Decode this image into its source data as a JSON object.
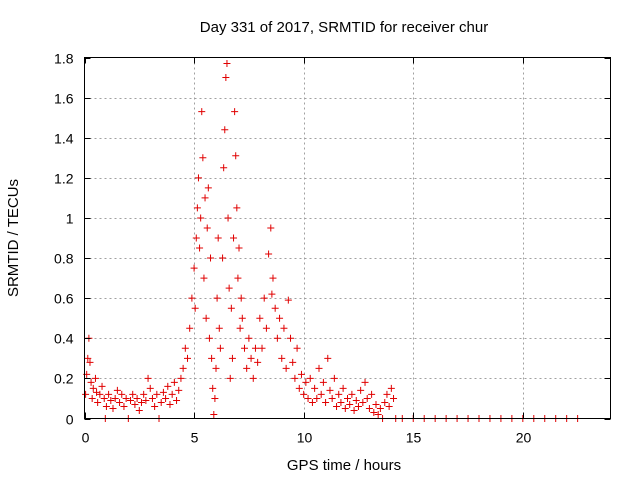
{
  "colors": {
    "marker": "#e00000",
    "axis": "#000000",
    "grid": "#a0a0a0"
  },
  "chart_data": {
    "type": "scatter",
    "title": "Day 331 of 2017, SRMTID for receiver chur",
    "xlabel": "GPS time / hours",
    "ylabel": "SRMTID / TECUs",
    "xlim": [
      0,
      24
    ],
    "ylim": [
      0,
      1.8
    ],
    "xticks": [
      0,
      5,
      10,
      15,
      20
    ],
    "xtick_labels": [
      "0",
      "5",
      "10",
      "15",
      "20"
    ],
    "yticks": [
      0,
      0.2,
      0.4,
      0.6,
      0.8,
      1.0,
      1.2,
      1.4,
      1.6,
      1.8
    ],
    "ytick_labels": [
      "0",
      "0.2",
      "0.4",
      "0.6",
      "0.8",
      "1",
      "1.2",
      "1.4",
      "1.6",
      "1.8"
    ],
    "grid": true,
    "marker": "plus",
    "series": [
      {
        "name": "SRMTID",
        "points": [
          [
            0.05,
            0.12
          ],
          [
            0.1,
            0.22
          ],
          [
            0.15,
            0.3
          ],
          [
            0.2,
            0.4
          ],
          [
            0.25,
            0.28
          ],
          [
            0.3,
            0.18
          ],
          [
            0.35,
            0.1
          ],
          [
            0.4,
            0.15
          ],
          [
            0.5,
            0.2
          ],
          [
            0.55,
            0.13
          ],
          [
            0.6,
            0.08
          ],
          [
            0.7,
            0.12
          ],
          [
            0.8,
            0.16
          ],
          [
            0.9,
            0.1
          ],
          [
            0.95,
            0.0
          ],
          [
            1.0,
            0.06
          ],
          [
            1.1,
            0.12
          ],
          [
            1.2,
            0.09
          ],
          [
            1.3,
            0.05
          ],
          [
            1.4,
            0.1
          ],
          [
            1.5,
            0.14
          ],
          [
            1.6,
            0.08
          ],
          [
            1.7,
            0.12
          ],
          [
            1.8,
            0.06
          ],
          [
            1.9,
            0.1
          ],
          [
            2.0,
            0.0
          ],
          [
            2.1,
            0.09
          ],
          [
            2.2,
            0.12
          ],
          [
            2.3,
            0.07
          ],
          [
            2.4,
            0.1
          ],
          [
            2.5,
            0.04
          ],
          [
            2.6,
            0.08
          ],
          [
            2.7,
            0.12
          ],
          [
            2.8,
            0.09
          ],
          [
            2.9,
            0.2
          ],
          [
            3.0,
            0.15
          ],
          [
            3.1,
            0.1
          ],
          [
            3.2,
            0.06
          ],
          [
            3.3,
            0.12
          ],
          [
            3.4,
            0.0
          ],
          [
            3.5,
            0.08
          ],
          [
            3.6,
            0.13
          ],
          [
            3.7,
            0.1
          ],
          [
            3.8,
            0.16
          ],
          [
            3.9,
            0.07
          ],
          [
            4.0,
            0.12
          ],
          [
            4.1,
            0.18
          ],
          [
            4.2,
            0.09
          ],
          [
            4.3,
            0.14
          ],
          [
            4.4,
            0.2
          ],
          [
            4.5,
            0.25
          ],
          [
            4.6,
            0.35
          ],
          [
            4.7,
            0.3
          ],
          [
            4.8,
            0.45
          ],
          [
            4.9,
            0.6
          ],
          [
            5.0,
            0.75
          ],
          [
            5.05,
            0.55
          ],
          [
            5.1,
            0.9
          ],
          [
            5.15,
            1.05
          ],
          [
            5.2,
            1.2
          ],
          [
            5.25,
            0.85
          ],
          [
            5.3,
            1.0
          ],
          [
            5.35,
            1.53
          ],
          [
            5.4,
            1.3
          ],
          [
            5.45,
            0.7
          ],
          [
            5.5,
            1.1
          ],
          [
            5.55,
            0.5
          ],
          [
            5.6,
            0.95
          ],
          [
            5.65,
            1.15
          ],
          [
            5.7,
            0.4
          ],
          [
            5.75,
            0.8
          ],
          [
            5.8,
            0.3
          ],
          [
            5.85,
            0.15
          ],
          [
            5.9,
            0.02
          ],
          [
            5.95,
            0.1
          ],
          [
            6.0,
            0.25
          ],
          [
            6.05,
            0.6
          ],
          [
            6.1,
            0.9
          ],
          [
            6.15,
            0.45
          ],
          [
            6.2,
            0.35
          ],
          [
            6.3,
            0.8
          ],
          [
            6.35,
            1.25
          ],
          [
            6.4,
            1.44
          ],
          [
            6.45,
            1.7
          ],
          [
            6.5,
            1.77
          ],
          [
            6.55,
            1.0
          ],
          [
            6.6,
            0.65
          ],
          [
            6.65,
            0.2
          ],
          [
            6.7,
            0.55
          ],
          [
            6.75,
            0.3
          ],
          [
            6.8,
            0.9
          ],
          [
            6.85,
            1.53
          ],
          [
            6.9,
            1.31
          ],
          [
            6.95,
            1.05
          ],
          [
            7.0,
            0.7
          ],
          [
            7.05,
            0.85
          ],
          [
            7.1,
            0.45
          ],
          [
            7.15,
            0.6
          ],
          [
            7.2,
            0.5
          ],
          [
            7.3,
            0.35
          ],
          [
            7.4,
            0.25
          ],
          [
            7.5,
            0.4
          ],
          [
            7.6,
            0.3
          ],
          [
            7.7,
            0.2
          ],
          [
            7.8,
            0.35
          ],
          [
            7.9,
            0.28
          ],
          [
            8.0,
            0.5
          ],
          [
            8.1,
            0.35
          ],
          [
            8.2,
            0.6
          ],
          [
            8.3,
            0.45
          ],
          [
            8.4,
            0.82
          ],
          [
            8.5,
            0.95
          ],
          [
            8.55,
            0.62
          ],
          [
            8.6,
            0.7
          ],
          [
            8.7,
            0.55
          ],
          [
            8.8,
            0.4
          ],
          [
            8.9,
            0.5
          ],
          [
            9.0,
            0.3
          ],
          [
            9.1,
            0.45
          ],
          [
            9.2,
            0.25
          ],
          [
            9.3,
            0.59
          ],
          [
            9.4,
            0.4
          ],
          [
            9.5,
            0.28
          ],
          [
            9.6,
            0.2
          ],
          [
            9.7,
            0.35
          ],
          [
            9.8,
            0.15
          ],
          [
            9.9,
            0.22
          ],
          [
            10.0,
            0.12
          ],
          [
            10.1,
            0.18
          ],
          [
            10.2,
            0.1
          ],
          [
            10.3,
            0.2
          ],
          [
            10.4,
            0.08
          ],
          [
            10.5,
            0.15
          ],
          [
            10.6,
            0.1
          ],
          [
            10.7,
            0.25
          ],
          [
            10.8,
            0.12
          ],
          [
            10.9,
            0.18
          ],
          [
            11.0,
            0.08
          ],
          [
            11.1,
            0.3
          ],
          [
            11.2,
            0.14
          ],
          [
            11.3,
            0.1
          ],
          [
            11.4,
            0.2
          ],
          [
            11.5,
            0.06
          ],
          [
            11.6,
            0.12
          ],
          [
            11.7,
            0.08
          ],
          [
            11.8,
            0.15
          ],
          [
            11.9,
            0.05
          ],
          [
            12.0,
            0.1
          ],
          [
            12.1,
            0.07
          ],
          [
            12.2,
            0.12
          ],
          [
            12.3,
            0.04
          ],
          [
            12.4,
            0.09
          ],
          [
            12.5,
            0.06
          ],
          [
            12.6,
            0.14
          ],
          [
            12.7,
            0.08
          ],
          [
            12.8,
            0.18
          ],
          [
            12.9,
            0.1
          ],
          [
            13.0,
            0.05
          ],
          [
            13.1,
            0.12
          ],
          [
            13.2,
            0.03
          ],
          [
            13.3,
            0.07
          ],
          [
            13.4,
            0.02
          ],
          [
            13.5,
            0.05
          ],
          [
            13.6,
            0.0
          ],
          [
            13.7,
            0.08
          ],
          [
            13.8,
            0.12
          ],
          [
            13.9,
            0.06
          ],
          [
            14.0,
            0.15
          ],
          [
            14.1,
            0.1
          ],
          [
            14.2,
            0.0
          ],
          [
            14.5,
            0.0
          ],
          [
            15.0,
            0.0
          ],
          [
            15.5,
            0.0
          ],
          [
            16.0,
            0.0
          ],
          [
            16.5,
            0.0
          ],
          [
            17.0,
            0.0
          ],
          [
            17.5,
            0.0
          ],
          [
            18.0,
            0.0
          ],
          [
            18.5,
            0.0
          ],
          [
            19.0,
            0.0
          ],
          [
            19.5,
            0.0
          ],
          [
            20.0,
            0.0
          ],
          [
            20.5,
            0.0
          ],
          [
            21.0,
            0.0
          ],
          [
            21.5,
            0.0
          ],
          [
            22.0,
            0.0
          ],
          [
            22.5,
            0.0
          ]
        ]
      }
    ]
  }
}
